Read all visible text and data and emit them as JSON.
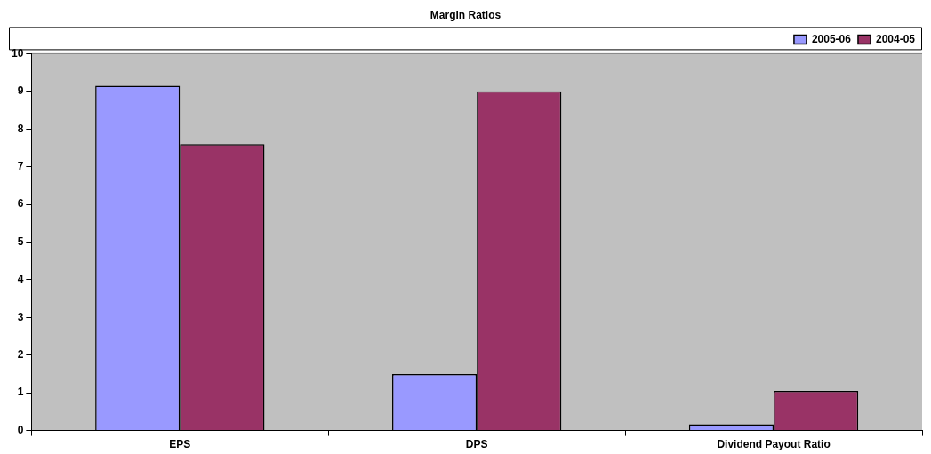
{
  "chart_data": {
    "type": "bar",
    "title": "Margin Ratios",
    "categories": [
      "EPS",
      "DPS",
      "Dividend Payout Ratio"
    ],
    "series": [
      {
        "name": "2005-06",
        "color": "#9999ff",
        "values": [
          9.15,
          1.5,
          0.17
        ]
      },
      {
        "name": "2004-05",
        "color": "#993366",
        "values": [
          7.6,
          9.0,
          1.05
        ]
      }
    ],
    "ylim": [
      0,
      10
    ],
    "yticks": [
      0,
      1,
      2,
      3,
      4,
      5,
      6,
      7,
      8,
      9,
      10
    ],
    "grid": false,
    "legend": "top right"
  }
}
